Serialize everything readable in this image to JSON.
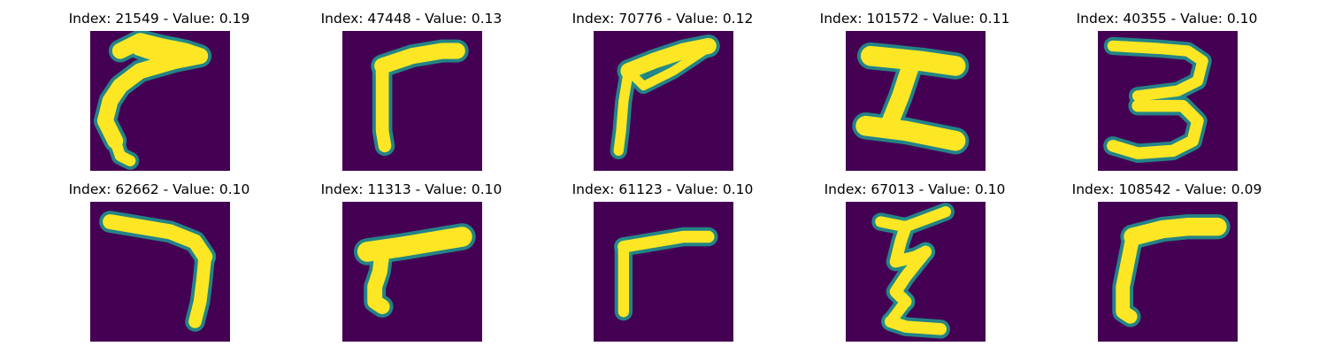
{
  "panels": [
    {
      "title": "Index: 21549 - Value: 0.19",
      "index": 21549,
      "value": 0.19,
      "glyph": "hook-left"
    },
    {
      "title": "Index: 47448 - Value: 0.13",
      "index": 47448,
      "value": 0.13,
      "glyph": "gamma"
    },
    {
      "title": "Index: 70776 - Value: 0.12",
      "index": 70776,
      "value": 0.12,
      "glyph": "gamma-slant"
    },
    {
      "title": "Index: 101572 - Value: 0.11",
      "index": 101572,
      "value": 0.11,
      "glyph": "z-shape"
    },
    {
      "title": "Index: 40355 - Value: 0.10",
      "index": 40355,
      "value": 0.1,
      "glyph": "three"
    },
    {
      "title": "Index: 62662 - Value: 0.10",
      "index": 62662,
      "value": 0.1,
      "glyph": "seven"
    },
    {
      "title": "Index: 11313 - Value: 0.10",
      "index": 11313,
      "value": 0.1,
      "glyph": "gamma-thick"
    },
    {
      "title": "Index: 61123 - Value: 0.10",
      "index": 61123,
      "value": 0.1,
      "glyph": "gamma-thin"
    },
    {
      "title": "Index: 67013 - Value: 0.10",
      "index": 67013,
      "value": 0.1,
      "glyph": "zig-z"
    },
    {
      "title": "Index: 108542 - Value: 0.09",
      "index": 108542,
      "value": 0.09,
      "glyph": "gamma-bold"
    }
  ],
  "colors": {
    "background": "#440154",
    "stroke_core": "#fde725",
    "stroke_edge": "#21918c"
  }
}
